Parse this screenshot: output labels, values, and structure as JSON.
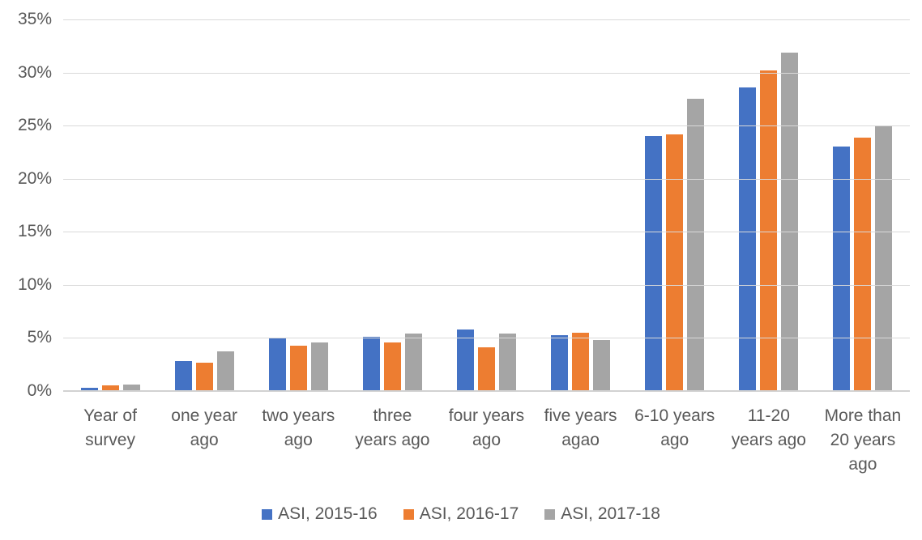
{
  "chart_data": {
    "type": "bar",
    "title": "",
    "xlabel": "",
    "ylabel": "",
    "ylim": [
      0,
      35
    ],
    "ytick_step": 5,
    "ytick_labels": [
      "0%",
      "5%",
      "10%",
      "15%",
      "20%",
      "25%",
      "30%",
      "35%"
    ],
    "grid": true,
    "legend_position": "bottom",
    "categories": [
      "Year of survey",
      "one year ago",
      "two years ago",
      "three years ago",
      "four years ago",
      "five years agao",
      "6-10 years ago",
      "11-20 years ago",
      "More than 20 years ago"
    ],
    "category_label_lines": [
      "Year of\nsurvey",
      "one year\nago",
      "two years\nago",
      "three\nyears ago",
      "four years\nago",
      "five years\nagao",
      "6-10 years\nago",
      "11-20\nyears ago",
      "More than\n20 years\nago"
    ],
    "series": [
      {
        "name": "ASI, 2015-16",
        "color": "#4472C4",
        "values": [
          0.3,
          2.8,
          5.0,
          5.1,
          5.8,
          5.3,
          24.0,
          28.6,
          23.0
        ]
      },
      {
        "name": "ASI, 2016-17",
        "color": "#ED7D31",
        "values": [
          0.5,
          2.7,
          4.3,
          4.6,
          4.1,
          5.5,
          24.2,
          30.2,
          23.9
        ]
      },
      {
        "name": "ASI, 2017-18",
        "color": "#A5A5A5",
        "values": [
          0.6,
          3.7,
          4.6,
          5.4,
          5.4,
          4.8,
          27.5,
          31.9,
          25.0
        ]
      }
    ],
    "colors": {
      "axis_text": "#595959",
      "gridline": "#D9D9D9",
      "axis_line": "#D2D2D2",
      "background": "#FFFFFF"
    }
  }
}
